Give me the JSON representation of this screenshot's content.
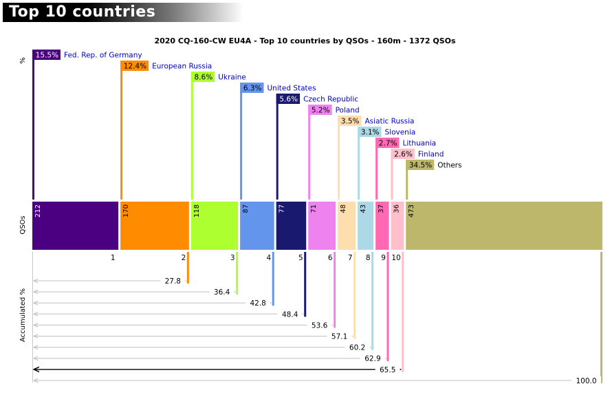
{
  "header": {
    "title": "Top 10 countries"
  },
  "chart_data": {
    "type": "bar",
    "title": "2020 CQ-160-CW EU4A - Top 10 countries by QSOs - 160m - 1372 QSOs",
    "ylabel_top": "%",
    "ylabel_mid": "QSOs",
    "ylabel_bottom": "Accumulated %",
    "total_qsos": 1372,
    "categories": [
      "Fed. Rep. of Germany",
      "European Russia",
      "Ukraine",
      "United States",
      "Czech Republic",
      "Poland",
      "Asiatic Russia",
      "Slovenia",
      "Lithuania",
      "Finland",
      "Others"
    ],
    "ranks": [
      "1",
      "2",
      "3",
      "4",
      "5",
      "6",
      "7",
      "8",
      "9",
      "10",
      ""
    ],
    "qsos": [
      212,
      170,
      118,
      87,
      77,
      71,
      48,
      43,
      37,
      36,
      473
    ],
    "percent": [
      15.5,
      12.4,
      8.6,
      6.3,
      5.6,
      5.2,
      3.5,
      3.1,
      2.7,
      2.6,
      34.5
    ],
    "percent_labels": [
      "15.5%",
      "12.4%",
      "8.6%",
      "6.3%",
      "5.6%",
      "5.2%",
      "3.5%",
      "3.1%",
      "2.7%",
      "2.6%",
      "34.5%"
    ],
    "accumulated": [
      15.5,
      27.8,
      36.4,
      42.8,
      48.4,
      53.6,
      57.1,
      60.2,
      62.9,
      65.5,
      100.0
    ],
    "accumulated_labels": [
      "",
      "27.8",
      "36.4",
      "42.8",
      "48.4",
      "53.6",
      "57.1",
      "60.2",
      "62.9",
      "65.5",
      "100.0"
    ],
    "colors": [
      "#4b0082",
      "#ff8c00",
      "#adff2f",
      "#6495ed",
      "#191970",
      "#ee82ee",
      "#ffdead",
      "#add8e6",
      "#ff69b4",
      "#ffc0cb",
      "#bdb76b"
    ],
    "label_text_colors": [
      "#ffffff",
      "#000000",
      "#000000",
      "#000000",
      "#ffffff",
      "#000000",
      "#000000",
      "#000000",
      "#000000",
      "#000000",
      "#000000"
    ],
    "name_colors": [
      "#0000cc",
      "#0000cc",
      "#0000cc",
      "#0000cc",
      "#0000cc",
      "#0000cc",
      "#0000cc",
      "#0000cc",
      "#0000cc",
      "#0000cc",
      "#000000"
    ]
  }
}
